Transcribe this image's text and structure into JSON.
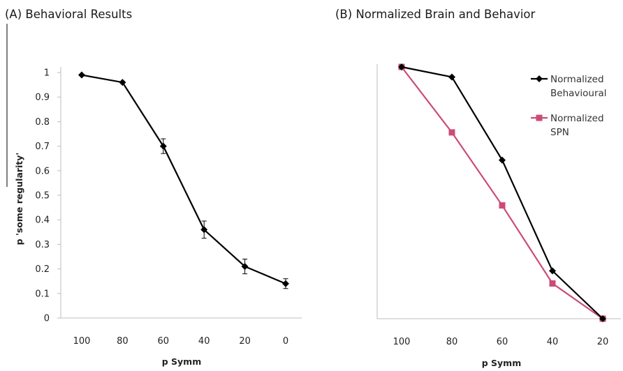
{
  "chart_data": [
    {
      "type": "line",
      "title": "(A) Behavioral Results",
      "xlabel": "p Symm",
      "ylabel": "p 'some regularity'",
      "categories": [
        "100",
        "80",
        "60",
        "40",
        "20",
        "0"
      ],
      "ylim": [
        0,
        1
      ],
      "yticks": [
        "0",
        "0.1",
        "0.2",
        "0.3",
        "0.4",
        "0.5",
        "0.6",
        "0.7",
        "0.8",
        "0.9",
        "1"
      ],
      "grid": false,
      "legend": "none",
      "series": [
        {
          "values": [
            0.99,
            0.96,
            0.7,
            0.36,
            0.21,
            0.14
          ],
          "errors": [
            0.005,
            0.005,
            0.03,
            0.035,
            0.03,
            0.02
          ],
          "color": "#000000",
          "marker": "diamond"
        }
      ]
    },
    {
      "type": "line",
      "title": "(B) Normalized Brain and Behavior",
      "xlabel": "p Symm",
      "ylabel": "",
      "categories": [
        "100",
        "80",
        "60",
        "40",
        "20"
      ],
      "ylim": [
        0,
        1
      ],
      "grid": false,
      "legend": "top-right",
      "series": [
        {
          "name": "Normalized Behavioural",
          "name_lines": [
            "Normalized",
            "Behavioural"
          ],
          "values": [
            1.0,
            0.96,
            0.63,
            0.19,
            0.0
          ],
          "color": "#000000",
          "marker": "diamond"
        },
        {
          "name": "Normalized SPN",
          "name_lines": [
            "Normalized",
            "SPN"
          ],
          "values": [
            1.0,
            0.74,
            0.45,
            0.14,
            0.0
          ],
          "color": "#cc4b78",
          "marker": "square"
        }
      ]
    }
  ]
}
